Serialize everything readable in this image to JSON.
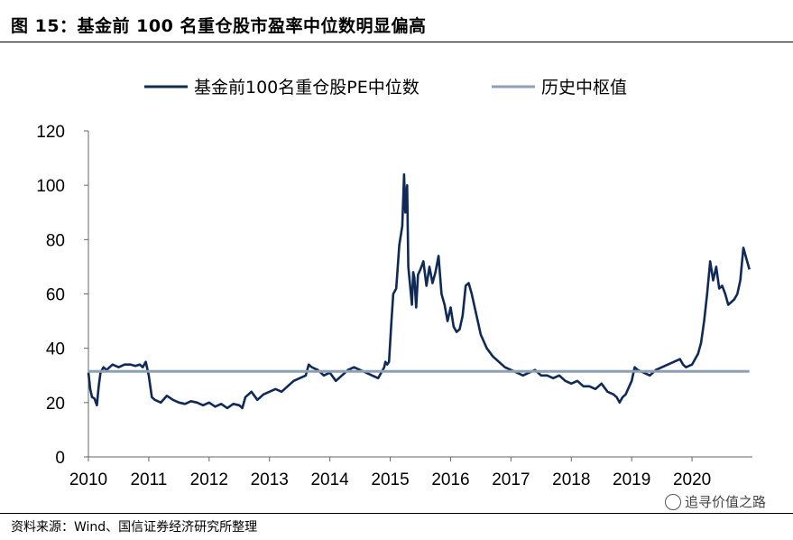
{
  "title": "图 15：基金前 100 名重仓股市盈率中位数明显偏高",
  "source": "资料来源：Wind、国信证券经济研究所整理",
  "watermark": "追寻价值之路",
  "watermark_icon": "wechat-icon",
  "chart_data": {
    "type": "line",
    "title": "",
    "xlabel": "",
    "ylabel": "",
    "ylim": [
      0,
      120
    ],
    "yticks": [
      0,
      20,
      40,
      60,
      80,
      100,
      120
    ],
    "xlim": [
      2010,
      2020.95
    ],
    "xticks": [
      "2010",
      "2011",
      "2012",
      "2013",
      "2014",
      "2015",
      "2016",
      "2017",
      "2018",
      "2019",
      "2020"
    ],
    "grid": false,
    "legend": "top",
    "series": [
      {
        "name": "基金前100名重仓股PE中位数",
        "color": "#0f2a57",
        "x": [
          2010.0,
          2010.03,
          2010.06,
          2010.1,
          2010.14,
          2010.17,
          2010.2,
          2010.25,
          2010.3,
          2010.4,
          2010.5,
          2010.6,
          2010.7,
          2010.78,
          2010.85,
          2010.9,
          2010.95,
          2011.0,
          2011.05,
          2011.1,
          2011.2,
          2011.3,
          2011.4,
          2011.5,
          2011.6,
          2011.7,
          2011.8,
          2011.9,
          2012.0,
          2012.1,
          2012.2,
          2012.3,
          2012.4,
          2012.5,
          2012.55,
          2012.6,
          2012.7,
          2012.8,
          2012.9,
          2013.0,
          2013.1,
          2013.2,
          2013.3,
          2013.4,
          2013.5,
          2013.6,
          2013.65,
          2013.7,
          2013.8,
          2013.9,
          2014.0,
          2014.1,
          2014.2,
          2014.3,
          2014.4,
          2014.5,
          2014.6,
          2014.7,
          2014.8,
          2014.9,
          2014.92,
          2014.95,
          2014.98,
          2015.02,
          2015.05,
          2015.1,
          2015.15,
          2015.2,
          2015.23,
          2015.25,
          2015.28,
          2015.3,
          2015.33,
          2015.36,
          2015.38,
          2015.4,
          2015.43,
          2015.46,
          2015.5,
          2015.55,
          2015.6,
          2015.65,
          2015.7,
          2015.75,
          2015.8,
          2015.85,
          2015.9,
          2015.95,
          2016.0,
          2016.05,
          2016.1,
          2016.15,
          2016.2,
          2016.25,
          2016.3,
          2016.35,
          2016.4,
          2016.45,
          2016.5,
          2016.6,
          2016.7,
          2016.8,
          2016.9,
          2017.0,
          2017.1,
          2017.2,
          2017.3,
          2017.4,
          2017.5,
          2017.6,
          2017.7,
          2017.8,
          2017.9,
          2018.0,
          2018.1,
          2018.2,
          2018.3,
          2018.4,
          2018.5,
          2018.6,
          2018.7,
          2018.75,
          2018.8,
          2018.85,
          2018.9,
          2019.0,
          2019.05,
          2019.1,
          2019.2,
          2019.3,
          2019.4,
          2019.5,
          2019.6,
          2019.7,
          2019.8,
          2019.85,
          2019.9,
          2020.0,
          2020.05,
          2020.1,
          2020.15,
          2020.2,
          2020.25,
          2020.3,
          2020.35,
          2020.4,
          2020.45,
          2020.5,
          2020.55,
          2020.6,
          2020.65,
          2020.7,
          2020.75,
          2020.8,
          2020.85,
          2020.9,
          2020.95
        ],
        "y": [
          31,
          25,
          22,
          21.5,
          19,
          26,
          31,
          33,
          32,
          34,
          33,
          34,
          34,
          33.5,
          34,
          33,
          35,
          30,
          22,
          21,
          20,
          22.5,
          21,
          20,
          19.5,
          20.5,
          20,
          19,
          20,
          18.5,
          19.5,
          18,
          19.5,
          19,
          18,
          22,
          24,
          21,
          23,
          24,
          25,
          24,
          26,
          28,
          29,
          30,
          34,
          33,
          32,
          30,
          31,
          28,
          30,
          32,
          33,
          32,
          31,
          30,
          29,
          33,
          35,
          34,
          35,
          50,
          60,
          62,
          78,
          85,
          104,
          90,
          100,
          70,
          63,
          56,
          68,
          66,
          55,
          67,
          69,
          72,
          63,
          70,
          64,
          68,
          74,
          60,
          56,
          50,
          55,
          48,
          46,
          47,
          52,
          63,
          64,
          60,
          55,
          50,
          45,
          40,
          37,
          35,
          33,
          32,
          31,
          30,
          31,
          32,
          30,
          30,
          29,
          30,
          28,
          27,
          28,
          26,
          26,
          25,
          27,
          24,
          23,
          22,
          20,
          22,
          23,
          28,
          33,
          32,
          31,
          30,
          32,
          33,
          34,
          35,
          36,
          34,
          33,
          34,
          36,
          38,
          42,
          50,
          60,
          72,
          65,
          70,
          62,
          63,
          60,
          56,
          57,
          58,
          60,
          65,
          77,
          73,
          69
        ]
      },
      {
        "name": "历史中枢值",
        "color": "#8ea0b4",
        "x": [
          2010.0,
          2020.95
        ],
        "y": [
          31.5,
          31.5
        ]
      }
    ]
  }
}
